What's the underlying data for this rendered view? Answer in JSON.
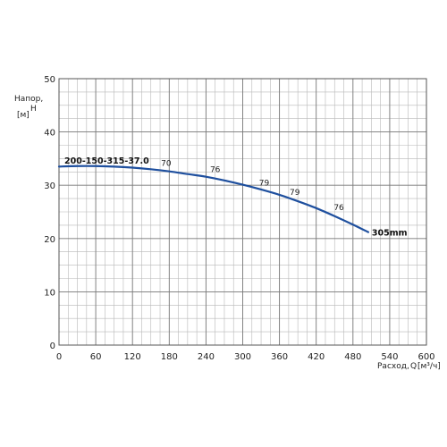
{
  "chart_data": {
    "type": "line",
    "xlabel": "Расход,",
    "xlabel_var": "Q",
    "xlabel_unit": "[м³/ч]",
    "ylabel": "Напор,",
    "ylabel_var": "H",
    "ylabel_unit": "[м]",
    "xlim": [
      0,
      600
    ],
    "ylim": [
      0,
      50
    ],
    "x_ticks": [
      0,
      60,
      120,
      180,
      240,
      300,
      360,
      420,
      480,
      540,
      600
    ],
    "y_ticks": [
      0,
      10,
      20,
      30,
      40,
      50
    ],
    "x_minor_step": 15,
    "y_minor_step": 2.5,
    "grid": true,
    "model_label": "200-150-315-37.0",
    "series": [
      {
        "name": "305mm",
        "color": "#1e4f9e",
        "x": [
          0,
          30,
          60,
          90,
          120,
          150,
          180,
          210,
          240,
          270,
          300,
          330,
          360,
          390,
          420,
          450,
          480,
          505
        ],
        "y": [
          33.5,
          33.6,
          33.6,
          33.5,
          33.3,
          33.0,
          32.6,
          32.1,
          31.6,
          30.9,
          30.1,
          29.2,
          28.2,
          27.0,
          25.7,
          24.2,
          22.6,
          21.2
        ]
      }
    ],
    "efficiency_labels": [
      {
        "text": "70",
        "x": 175,
        "y": 33.0
      },
      {
        "text": "76",
        "x": 255,
        "y": 31.8
      },
      {
        "text": "79",
        "x": 335,
        "y": 29.3
      },
      {
        "text": "79",
        "x": 385,
        "y": 27.5
      },
      {
        "text": "76",
        "x": 457,
        "y": 24.7
      }
    ]
  }
}
